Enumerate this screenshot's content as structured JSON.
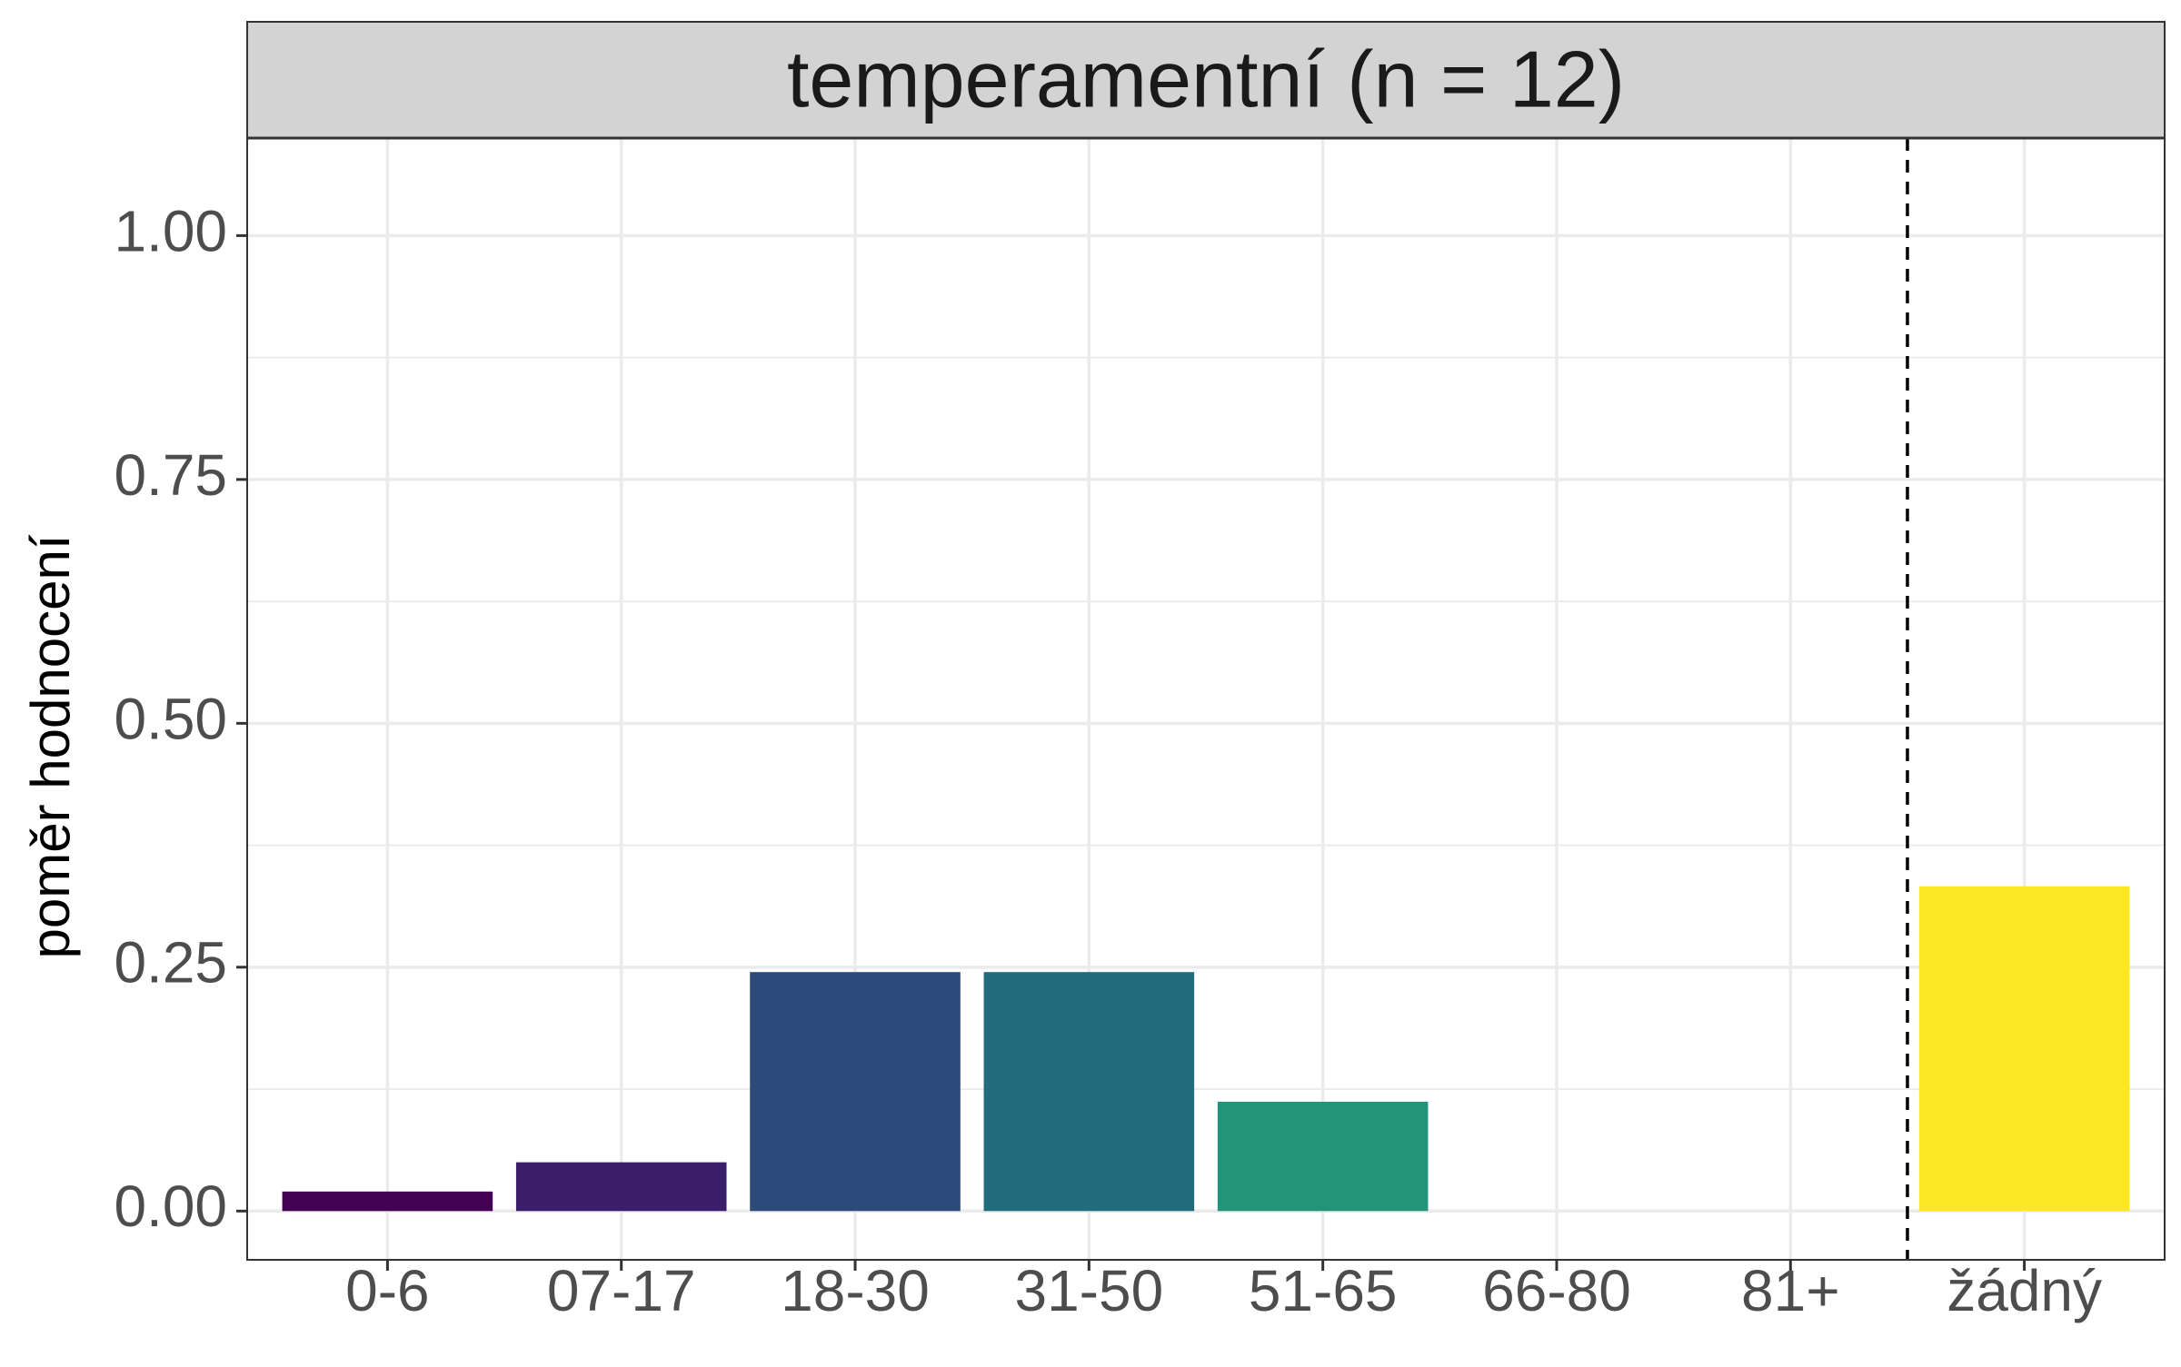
{
  "chart_data": {
    "type": "bar",
    "title": "temperamentní (n = 12)",
    "xlabel": "",
    "ylabel": "poměr hodnocení",
    "categories": [
      "0-6",
      "07-17",
      "18-30",
      "31-50",
      "51-65",
      "66-80",
      "81+",
      "žádný"
    ],
    "values": [
      0.02,
      0.05,
      0.245,
      0.245,
      0.112,
      0,
      0,
      0.333
    ],
    "colors": [
      "#440154",
      "#3B1E6B",
      "#2C4B7A",
      "#226D7D",
      "#21947A",
      "#3FB56F",
      "#8FD14F",
      "#FDE725"
    ],
    "ylim": [
      -0.05,
      1.1
    ],
    "yticks": [
      "0.00",
      "0.25",
      "0.50",
      "0.75",
      "1.00"
    ],
    "ytick_values": [
      0,
      0.25,
      0.5,
      0.75,
      1.0
    ],
    "separator_after_index": 6,
    "grid": true,
    "legend": "none",
    "strip_color": "#D3D3D3",
    "grid_color": "#EBEBEB"
  }
}
